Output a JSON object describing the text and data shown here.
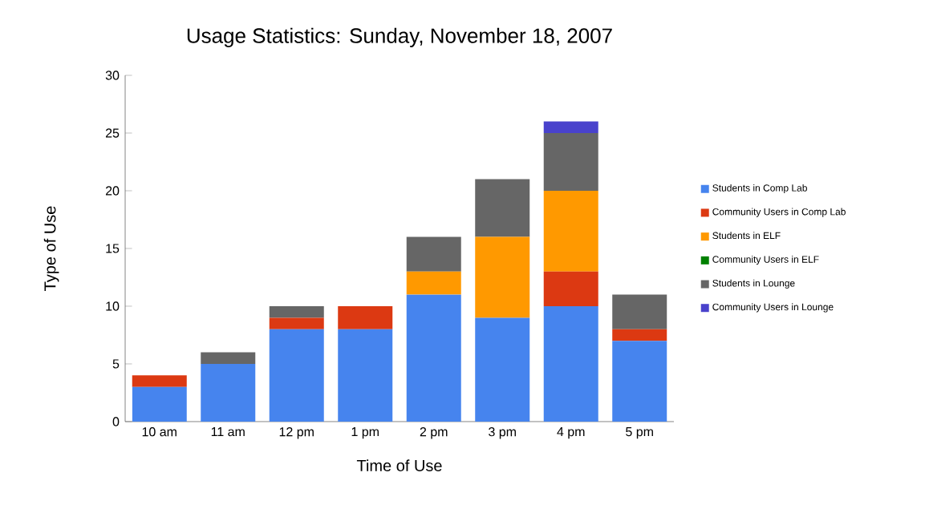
{
  "chart_data": {
    "type": "bar",
    "stacked": true,
    "title": "Usage Statistics: Sunday, November 18, 2007",
    "xlabel": "Time of Use",
    "ylabel": "Type of Use",
    "categories": [
      "10 am",
      "11 am",
      "12 pm",
      "1 pm",
      "2 pm",
      "3 pm",
      "4 pm",
      "5 pm"
    ],
    "series": [
      {
        "name": "Students in Comp Lab",
        "color": "#4684ee",
        "values": [
          3,
          5,
          8,
          8,
          11,
          9,
          10,
          7
        ]
      },
      {
        "name": "Community Users in Comp Lab",
        "color": "#dc3912",
        "values": [
          1,
          0,
          1,
          2,
          0,
          0,
          3,
          1
        ]
      },
      {
        "name": "Students in ELF",
        "color": "#ff9900",
        "values": [
          0,
          0,
          0,
          0,
          2,
          7,
          7,
          0
        ]
      },
      {
        "name": "Community Users in ELF",
        "color": "#008000",
        "values": [
          0,
          0,
          0,
          0,
          0,
          0,
          0,
          0
        ]
      },
      {
        "name": "Students in Lounge",
        "color": "#666666",
        "values": [
          0,
          1,
          1,
          0,
          3,
          5,
          5,
          3
        ]
      },
      {
        "name": "Community Users in Lounge",
        "color": "#4942cc",
        "values": [
          0,
          0,
          0,
          0,
          0,
          0,
          1,
          0
        ]
      }
    ],
    "ylim": [
      0,
      30
    ],
    "yticks": [
      0,
      5,
      10,
      15,
      20,
      25,
      30
    ],
    "legend": "right"
  }
}
